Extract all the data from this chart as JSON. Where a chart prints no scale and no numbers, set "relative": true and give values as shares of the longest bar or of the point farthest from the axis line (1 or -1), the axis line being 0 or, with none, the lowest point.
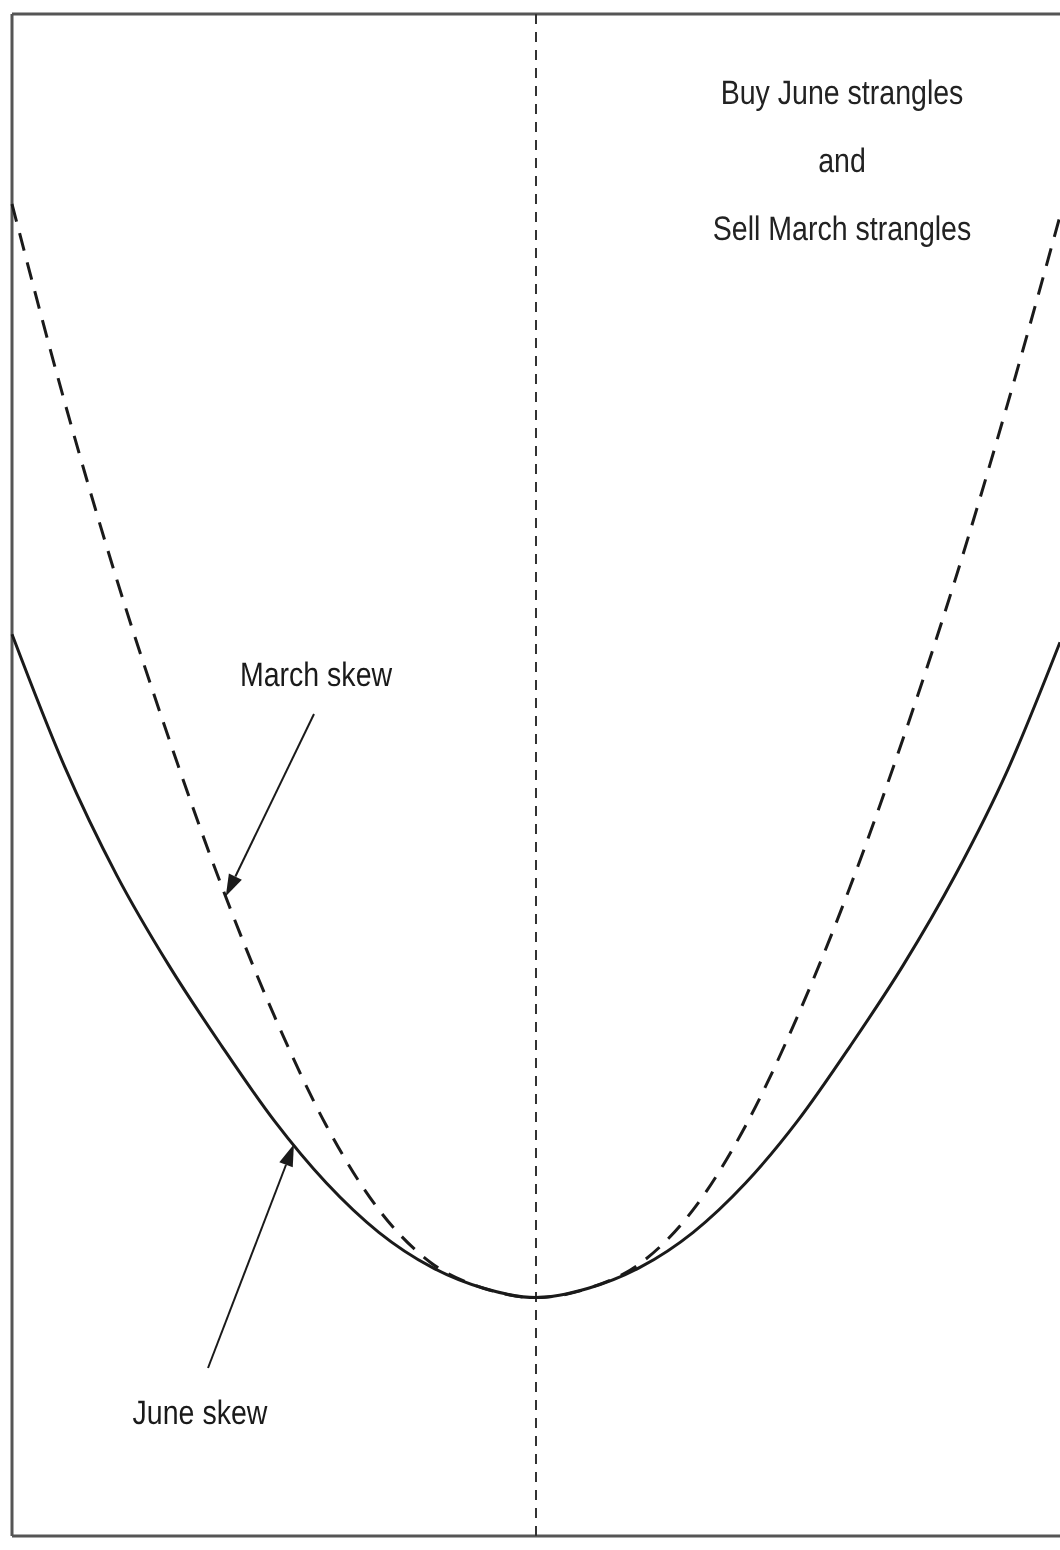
{
  "chart_data": {
    "type": "line",
    "relative": true,
    "categories": [
      null,
      null,
      null,
      null,
      null,
      null,
      null,
      null,
      null,
      null,
      null,
      null,
      null,
      null,
      null,
      null,
      null,
      null,
      null,
      null,
      null
    ],
    "series": [
      {
        "name": "March skew",
        "color": "#1a1a1a",
        "line_style": "dashed",
        "values": [
          1.0,
          0.852,
          0.718,
          0.598,
          0.488,
          0.391,
          0.308,
          0.245,
          0.205,
          0.186,
          0.179,
          0.186,
          0.205,
          0.245,
          0.308,
          0.391,
          0.488,
          0.598,
          0.718,
          0.85,
          0.991
        ]
      },
      {
        "name": "June skew",
        "color": "#1a1a1a",
        "line_style": "solid",
        "values": [
          0.677,
          0.578,
          0.496,
          0.428,
          0.368,
          0.312,
          0.265,
          0.228,
          0.202,
          0.186,
          0.179,
          0.186,
          0.202,
          0.228,
          0.265,
          0.312,
          0.368,
          0.428,
          0.496,
          0.575,
          0.671
        ]
      }
    ],
    "annotations": [
      "Buy June strangles\nand\nSell March strangles"
    ]
  }
}
